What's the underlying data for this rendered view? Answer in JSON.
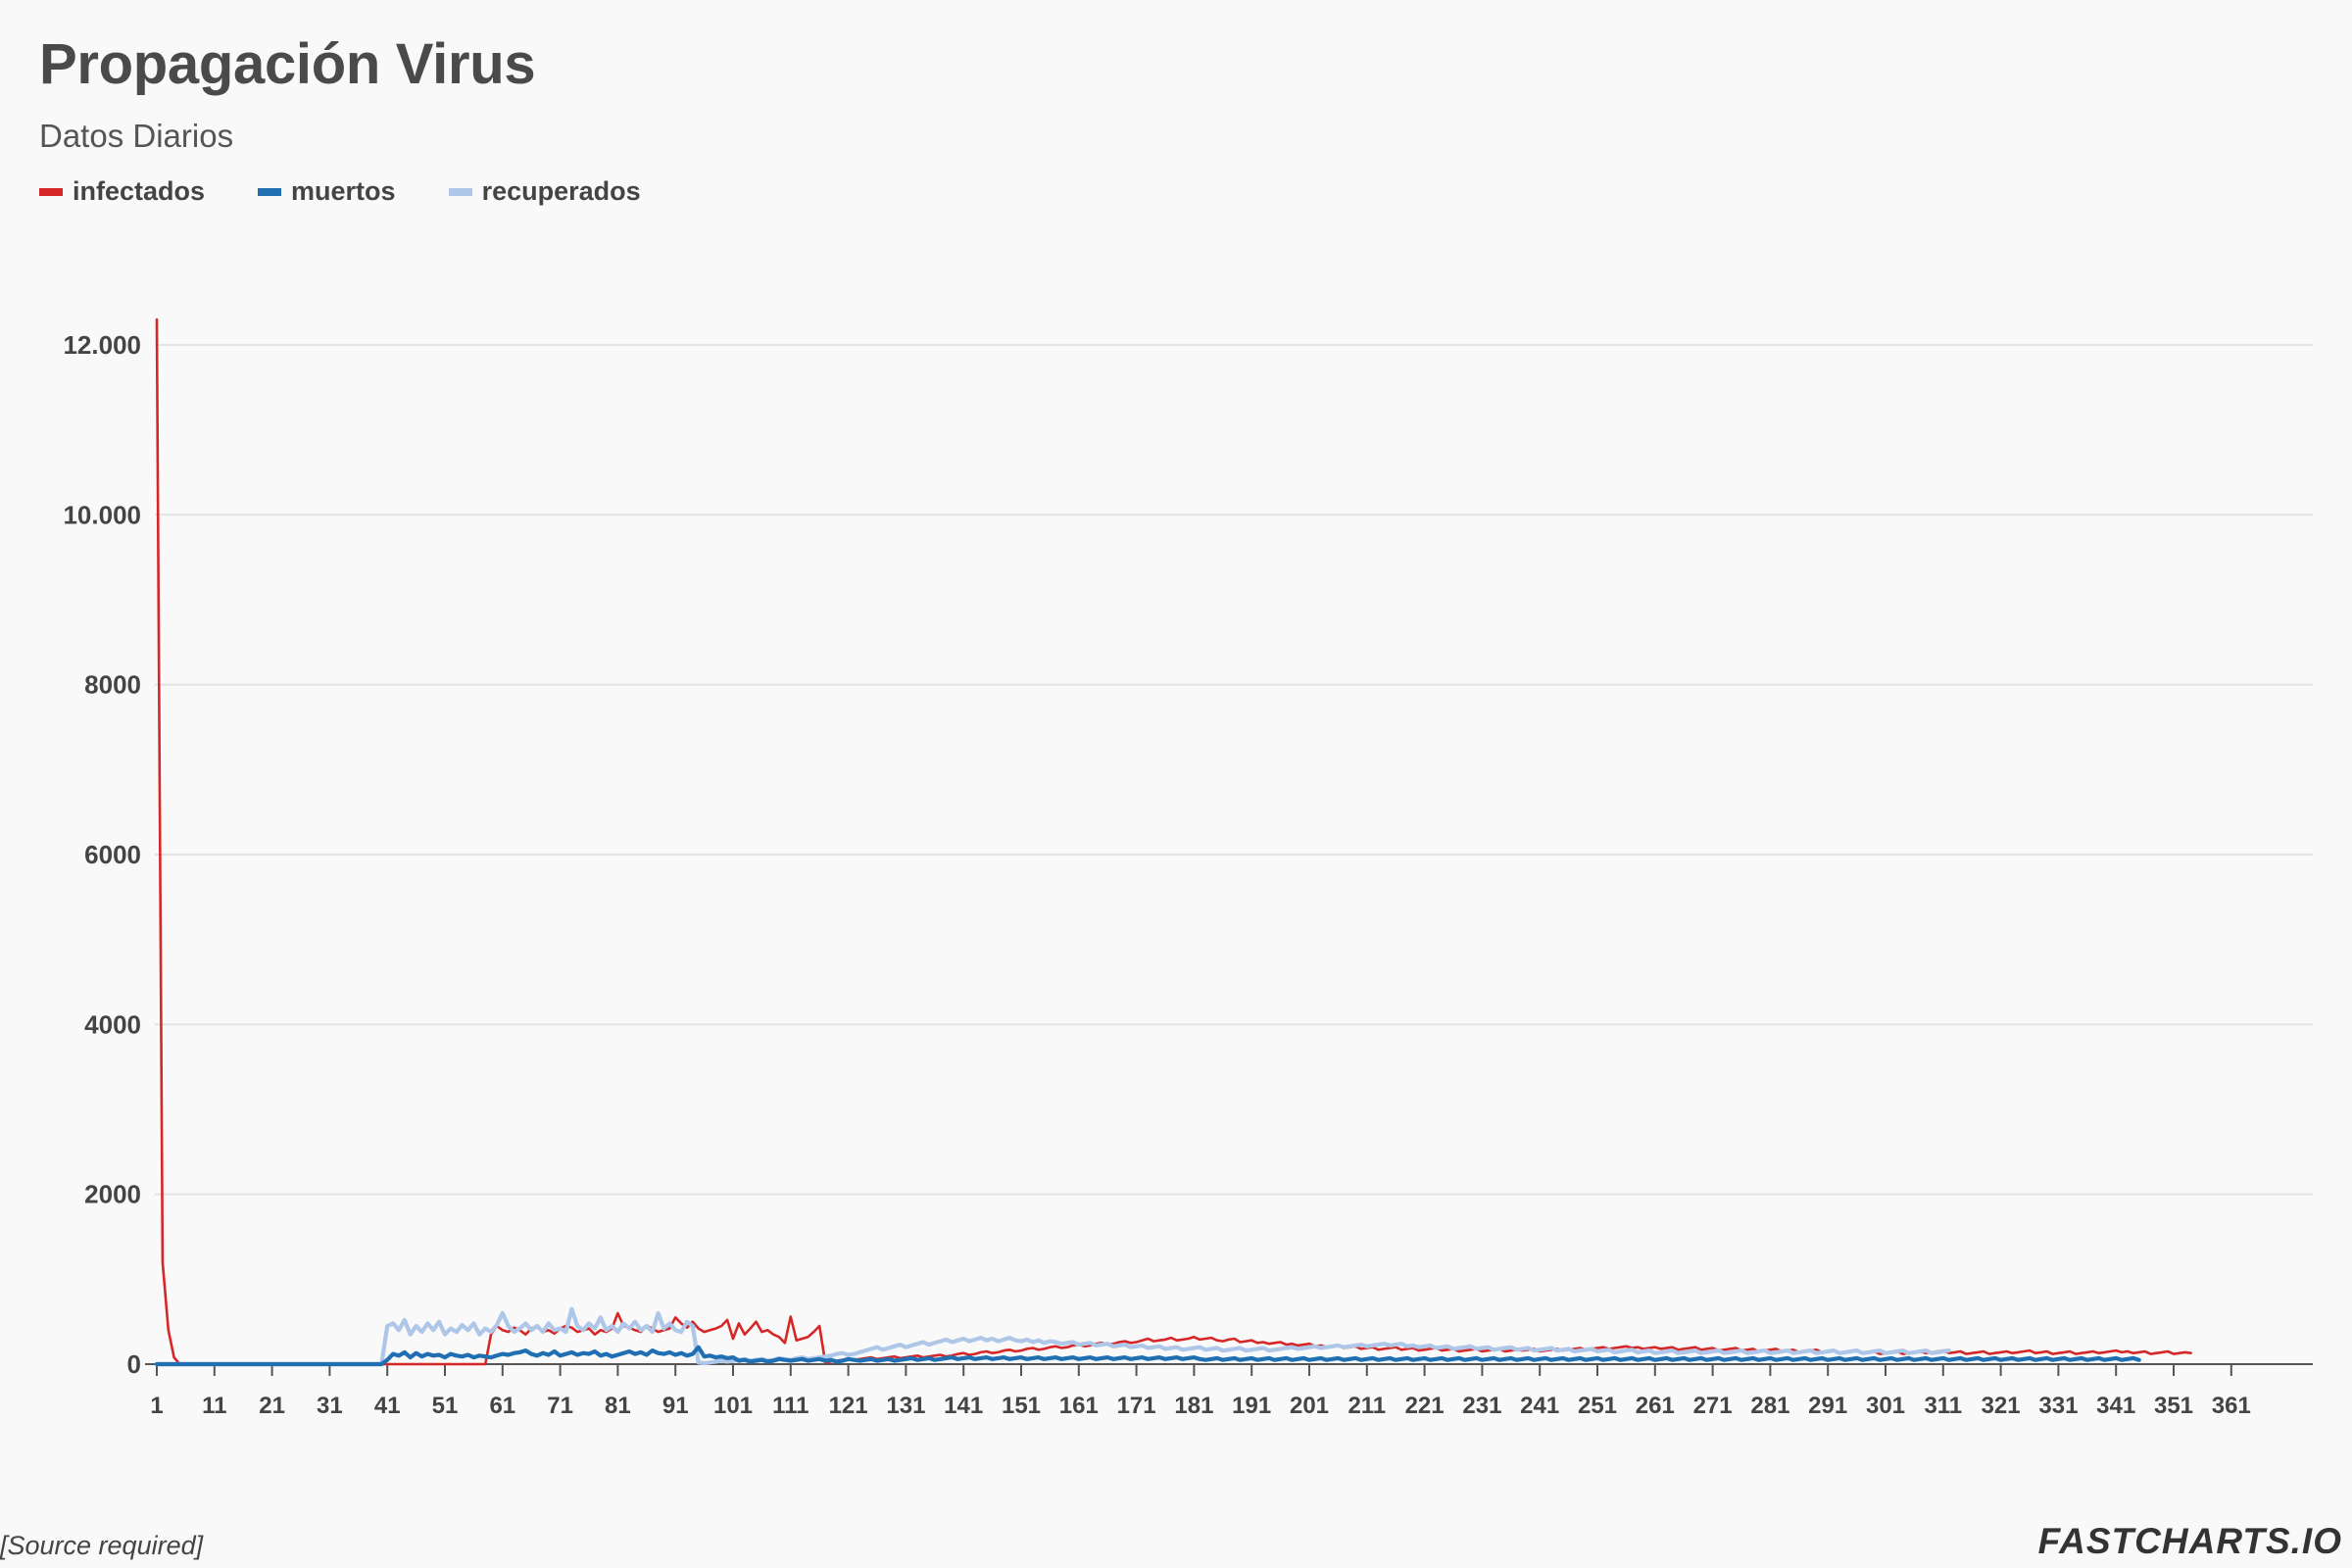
{
  "title": "Propagación Virus",
  "subtitle": "Datos Diarios",
  "source": "[Source required]",
  "brand": "FASTCHARTS.IO",
  "colors": {
    "infectados": "#d62728",
    "muertos": "#1f6fb2",
    "recuperados": "#aec7e8",
    "grid": "#e3e3e3",
    "axis": "#555555",
    "background": "#f9f9f9"
  },
  "legend": [
    {
      "key": "infectados",
      "label": "infectados"
    },
    {
      "key": "muertos",
      "label": "muertos"
    },
    {
      "key": "recuperados",
      "label": "recuperados"
    }
  ],
  "chart_data": {
    "type": "line",
    "title": "Propagación Virus",
    "subtitle": "Datos Diarios",
    "xlabel": "",
    "ylabel": "",
    "xlim": [
      1,
      372
    ],
    "ylim": [
      0,
      12400
    ],
    "grid": true,
    "legend_position": "top-left",
    "x_ticks": [
      1,
      11,
      21,
      31,
      41,
      51,
      61,
      71,
      81,
      91,
      101,
      111,
      121,
      131,
      141,
      151,
      161,
      171,
      181,
      191,
      201,
      211,
      221,
      231,
      241,
      251,
      261,
      271,
      281,
      291,
      301,
      311,
      321,
      331,
      341,
      351,
      361
    ],
    "y_ticks": [
      {
        "value": 0,
        "label": "0"
      },
      {
        "value": 2000,
        "label": "2000"
      },
      {
        "value": 4000,
        "label": "4000"
      },
      {
        "value": 6000,
        "label": "6000"
      },
      {
        "value": 8000,
        "label": "8000"
      },
      {
        "value": 10000,
        "label": "10.000"
      },
      {
        "value": 12000,
        "label": "12.000"
      }
    ],
    "x_start": 1,
    "series": [
      {
        "name": "infectados",
        "values": [
          12300,
          1200,
          400,
          80,
          0,
          0,
          0,
          0,
          0,
          0,
          0,
          0,
          0,
          0,
          0,
          0,
          0,
          0,
          0,
          0,
          0,
          0,
          0,
          0,
          0,
          0,
          0,
          0,
          0,
          0,
          0,
          0,
          0,
          0,
          0,
          0,
          0,
          0,
          0,
          0,
          0,
          0,
          0,
          0,
          0,
          0,
          0,
          0,
          0,
          0,
          0,
          0,
          0,
          0,
          0,
          0,
          0,
          0,
          350,
          450,
          400,
          380,
          430,
          400,
          350,
          420,
          450,
          380,
          400,
          360,
          420,
          450,
          430,
          380,
          400,
          420,
          350,
          400,
          380,
          420,
          600,
          450,
          430,
          400,
          380,
          450,
          420,
          380,
          400,
          420,
          550,
          480,
          430,
          500,
          420,
          380,
          400,
          420,
          450,
          520,
          300,
          480,
          350,
          420,
          500,
          380,
          400,
          350,
          320,
          250,
          560,
          280,
          300,
          320,
          380,
          450,
          20,
          30,
          40,
          50,
          60,
          50,
          60,
          70,
          80,
          60,
          70,
          80,
          90,
          70,
          80,
          90,
          100,
          80,
          90,
          100,
          110,
          90,
          100,
          120,
          130,
          110,
          120,
          140,
          150,
          130,
          140,
          160,
          170,
          150,
          160,
          180,
          190,
          170,
          180,
          200,
          210,
          190,
          200,
          220,
          230,
          210,
          220,
          240,
          250,
          230,
          240,
          260,
          270,
          250,
          260,
          280,
          300,
          270,
          280,
          290,
          310,
          280,
          290,
          300,
          320,
          290,
          300,
          310,
          280,
          270,
          290,
          300,
          260,
          270,
          280,
          250,
          260,
          240,
          250,
          260,
          230,
          240,
          220,
          230,
          240,
          210,
          220,
          200,
          210,
          220,
          190,
          200,
          210,
          180,
          190,
          200,
          170,
          180,
          190,
          200,
          170,
          180,
          190,
          160,
          170,
          180,
          190,
          160,
          170,
          180,
          150,
          160,
          170,
          180,
          150,
          160,
          170,
          180,
          150,
          160,
          170,
          160,
          170,
          180,
          150,
          160,
          170,
          180,
          160,
          170,
          180,
          190,
          170,
          180,
          190,
          200,
          180,
          190,
          200,
          210,
          190,
          200,
          180,
          190,
          200,
          180,
          190,
          200,
          170,
          180,
          190,
          200,
          170,
          180,
          190,
          160,
          170,
          180,
          190,
          160,
          170,
          180,
          150,
          160,
          170,
          180,
          150,
          160,
          170,
          140,
          150,
          160,
          170,
          140,
          150,
          160,
          130,
          140,
          150,
          160,
          130,
          140,
          150,
          120,
          130,
          140,
          150,
          120,
          130,
          140,
          150,
          130,
          140,
          150,
          160,
          130,
          140,
          150,
          120,
          130,
          140,
          150,
          120,
          130,
          140,
          150,
          130,
          140,
          150,
          160,
          130,
          140,
          150,
          120,
          130,
          140,
          150,
          120,
          130,
          140,
          150,
          130,
          140,
          150,
          160,
          140,
          150,
          130,
          140,
          150,
          120,
          130,
          140,
          150,
          120,
          130,
          140,
          130
        ]
      },
      {
        "name": "muertos",
        "values": [
          0,
          0,
          0,
          0,
          0,
          0,
          0,
          0,
          0,
          0,
          0,
          0,
          0,
          0,
          0,
          0,
          0,
          0,
          0,
          0,
          0,
          0,
          0,
          0,
          0,
          0,
          0,
          0,
          0,
          0,
          0,
          0,
          0,
          0,
          0,
          0,
          0,
          0,
          0,
          0,
          50,
          120,
          100,
          140,
          80,
          130,
          90,
          120,
          100,
          110,
          80,
          120,
          100,
          90,
          110,
          80,
          100,
          90,
          80,
          100,
          120,
          110,
          130,
          140,
          160,
          120,
          100,
          130,
          110,
          150,
          100,
          120,
          140,
          110,
          130,
          120,
          150,
          100,
          120,
          90,
          110,
          130,
          150,
          120,
          140,
          110,
          160,
          130,
          120,
          140,
          110,
          130,
          100,
          120,
          200,
          90,
          100,
          80,
          90,
          70,
          80,
          40,
          50,
          30,
          40,
          50,
          30,
          40,
          60,
          50,
          40,
          50,
          60,
          40,
          50,
          60,
          40,
          50,
          30,
          40,
          60,
          50,
          40,
          50,
          60,
          40,
          50,
          60,
          40,
          50,
          60,
          70,
          50,
          60,
          70,
          50,
          60,
          70,
          80,
          60,
          70,
          80,
          60,
          70,
          80,
          60,
          70,
          80,
          60,
          70,
          80,
          60,
          70,
          80,
          60,
          70,
          80,
          60,
          70,
          80,
          60,
          70,
          80,
          60,
          70,
          80,
          60,
          70,
          80,
          60,
          70,
          80,
          60,
          70,
          80,
          60,
          70,
          80,
          60,
          70,
          80,
          60,
          50,
          60,
          70,
          50,
          60,
          70,
          50,
          60,
          70,
          50,
          60,
          70,
          50,
          60,
          70,
          50,
          60,
          70,
          50,
          60,
          70,
          50,
          60,
          70,
          50,
          60,
          70,
          50,
          60,
          70,
          50,
          60,
          70,
          50,
          60,
          70,
          50,
          60,
          70,
          50,
          60,
          70,
          50,
          60,
          70,
          50,
          60,
          70,
          50,
          60,
          70,
          50,
          60,
          70,
          50,
          60,
          70,
          50,
          60,
          70,
          50,
          60,
          70,
          50,
          60,
          70,
          50,
          60,
          70,
          50,
          60,
          70,
          50,
          60,
          70,
          50,
          60,
          70,
          50,
          60,
          70,
          50,
          60,
          70,
          50,
          60,
          70,
          50,
          60,
          70,
          50,
          60,
          70,
          50,
          60,
          70,
          50,
          60,
          70,
          50,
          60,
          70,
          50,
          60,
          70,
          50,
          60,
          70,
          50,
          60,
          70,
          50,
          60,
          70,
          50,
          60,
          70,
          50,
          60,
          70,
          50,
          60,
          70,
          50,
          60,
          70,
          50,
          60,
          70,
          50,
          60,
          70,
          50,
          60,
          70,
          50,
          60,
          70,
          50,
          60,
          70,
          50,
          60,
          70,
          50,
          60,
          70,
          50,
          60,
          70,
          50,
          60,
          70,
          50,
          60,
          70,
          50,
          60,
          70,
          50,
          60,
          70,
          50
        ]
      },
      {
        "name": "recuperados",
        "values": [
          0,
          0,
          0,
          0,
          0,
          0,
          0,
          0,
          0,
          0,
          0,
          0,
          0,
          0,
          0,
          0,
          0,
          0,
          0,
          0,
          0,
          0,
          0,
          0,
          0,
          0,
          0,
          0,
          0,
          0,
          0,
          0,
          0,
          0,
          0,
          0,
          0,
          0,
          0,
          0,
          450,
          480,
          400,
          520,
          350,
          450,
          380,
          480,
          400,
          500,
          350,
          420,
          380,
          460,
          400,
          480,
          350,
          420,
          380,
          460,
          600,
          450,
          380,
          420,
          480,
          400,
          450,
          380,
          480,
          400,
          420,
          380,
          650,
          450,
          400,
          480,
          420,
          550,
          400,
          450,
          380,
          480,
          420,
          500,
          400,
          450,
          380,
          600,
          420,
          480,
          400,
          380,
          500,
          450,
          20,
          10,
          20,
          30,
          40,
          30,
          40,
          50,
          60,
          40,
          50,
          60,
          40,
          50,
          70,
          60,
          50,
          70,
          80,
          60,
          70,
          80,
          90,
          100,
          120,
          130,
          110,
          120,
          140,
          160,
          180,
          200,
          170,
          190,
          210,
          230,
          200,
          220,
          240,
          260,
          230,
          250,
          270,
          290,
          260,
          280,
          300,
          270,
          290,
          310,
          280,
          300,
          270,
          290,
          310,
          280,
          270,
          290,
          260,
          280,
          250,
          270,
          260,
          240,
          250,
          260,
          230,
          240,
          250,
          220,
          230,
          240,
          210,
          220,
          230,
          200,
          210,
          220,
          190,
          200,
          210,
          180,
          190,
          200,
          170,
          180,
          190,
          200,
          170,
          180,
          190,
          160,
          170,
          180,
          190,
          160,
          170,
          180,
          190,
          160,
          170,
          180,
          190,
          200,
          180,
          190,
          200,
          210,
          190,
          200,
          210,
          220,
          200,
          210,
          220,
          230,
          210,
          220,
          230,
          240,
          220,
          230,
          240,
          210,
          220,
          200,
          210,
          220,
          190,
          200,
          210,
          180,
          190,
          200,
          210,
          180,
          190,
          200,
          170,
          180,
          190,
          200,
          170,
          180,
          190,
          160,
          170,
          180,
          190,
          160,
          170,
          180,
          150,
          160,
          170,
          180,
          150,
          160,
          170,
          140,
          150,
          160,
          170,
          140,
          150,
          160,
          130,
          140,
          150,
          160,
          130,
          140,
          150,
          160,
          130,
          140,
          150,
          160,
          130,
          140,
          150,
          160,
          130,
          140,
          150,
          160,
          130,
          140,
          150,
          160,
          130,
          140,
          150,
          160,
          130,
          140,
          150,
          160,
          130,
          140,
          150,
          160,
          130,
          140,
          150,
          160,
          130,
          140,
          150,
          160,
          130,
          140,
          150,
          160,
          130,
          140,
          150,
          160
        ]
      }
    ]
  }
}
